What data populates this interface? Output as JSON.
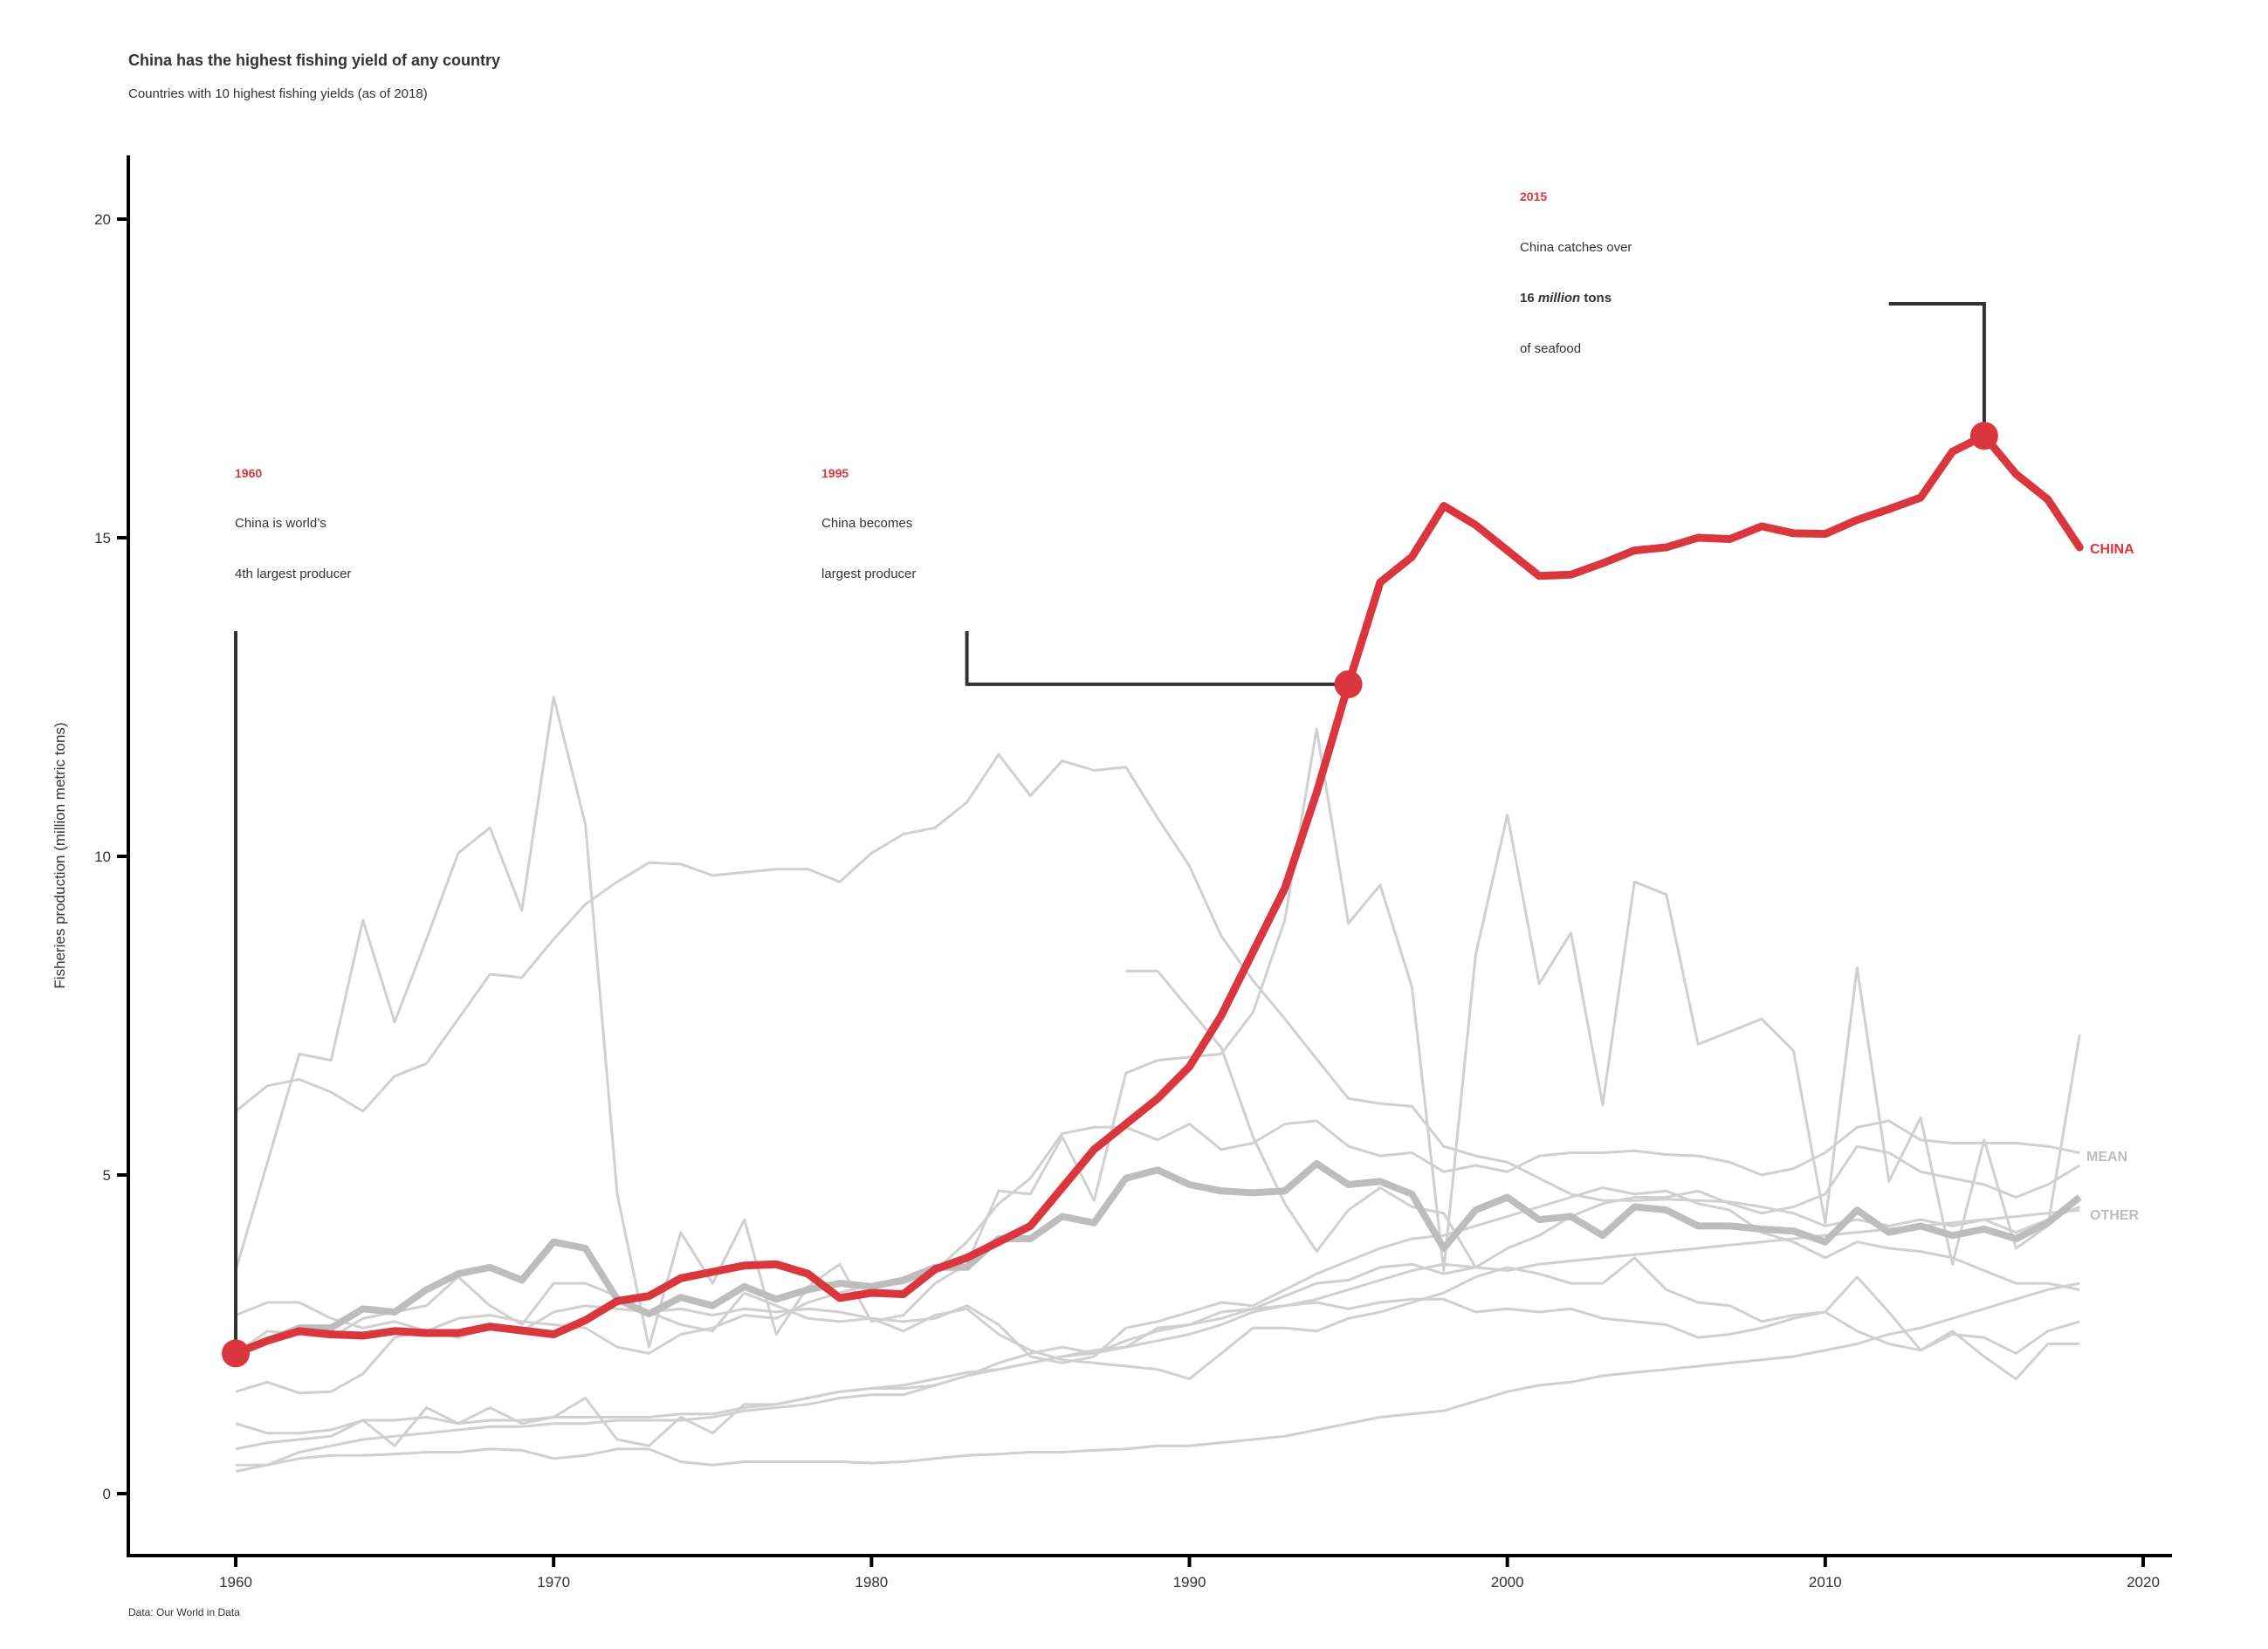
{
  "colors": {
    "highlight": "#d9363e",
    "other_lines": "#d0d0d0",
    "mean_line": "#bdbdbd",
    "text": "#333333",
    "axis": "#000000"
  },
  "title": "China has the highest fishing yield of any country",
  "subtitle": "Countries with 10 highest fishing yields (as of 2018)",
  "source": "Data: Our World in Data",
  "annotations": [
    {
      "year_label": "1960",
      "line1": "China is world’s",
      "line2": "4th largest producer"
    },
    {
      "year_label": "1995",
      "line1": "China becomes",
      "line2": "largest producer"
    },
    {
      "year_label": "2015",
      "line1": "China catches over",
      "line2_pre": "16 ",
      "line2_em": "million",
      "line2_post": " tons",
      "line3": "of seafood"
    }
  ],
  "chart_data": {
    "type": "line",
    "xlabel": "",
    "ylabel": "Fisheries production (million metric tons)",
    "xlim": [
      1960,
      2020
    ],
    "ylim": [
      0,
      20
    ],
    "x_ticks": [
      "1960",
      "1970",
      "1980",
      "1990",
      "2000",
      "2010",
      "2020"
    ],
    "y_ticks": [
      "0",
      "5",
      "10",
      "15",
      "20"
    ],
    "grid": false,
    "legend": "direct labels at line ends",
    "x": [
      1960,
      1961,
      1962,
      1963,
      1964,
      1965,
      1966,
      1967,
      1968,
      1969,
      1970,
      1971,
      1972,
      1973,
      1974,
      1975,
      1976,
      1977,
      1978,
      1979,
      1980,
      1981,
      1982,
      1983,
      1984,
      1985,
      1986,
      1987,
      1988,
      1989,
      1990,
      1991,
      1992,
      1993,
      1994,
      1995,
      1996,
      1997,
      1998,
      1999,
      2000,
      2001,
      2002,
      2003,
      2004,
      2005,
      2006,
      2007,
      2008,
      2009,
      2010,
      2011,
      2012,
      2013,
      2014,
      2015,
      2016,
      2017,
      2018
    ],
    "highlight_series": {
      "name": "CHINA",
      "values": [
        2.2,
        2.4,
        2.55,
        2.5,
        2.48,
        2.55,
        2.52,
        2.52,
        2.62,
        2.56,
        2.5,
        2.72,
        3.02,
        3.1,
        3.38,
        3.48,
        3.58,
        3.6,
        3.45,
        3.07,
        3.15,
        3.13,
        3.52,
        3.7,
        3.95,
        4.2,
        4.8,
        5.4,
        5.8,
        6.2,
        6.7,
        7.5,
        8.5,
        9.5,
        11.0,
        12.7,
        14.3,
        14.7,
        15.5,
        15.2,
        14.8,
        14.4,
        14.42,
        14.6,
        14.8,
        14.85,
        15.0,
        14.98,
        15.18,
        15.07,
        15.06,
        15.28,
        15.45,
        15.63,
        16.35,
        16.6,
        16.0,
        15.6,
        14.85
      ]
    },
    "mean_series": {
      "name": "MEAN",
      "values": [
        2.2,
        2.4,
        2.6,
        2.6,
        2.9,
        2.85,
        3.2,
        3.45,
        3.55,
        3.35,
        3.95,
        3.85,
        3.05,
        2.82,
        3.08,
        2.95,
        3.25,
        3.05,
        3.2,
        3.3,
        3.25,
        3.35,
        3.55,
        3.55,
        4.0,
        4.0,
        4.35,
        4.25,
        4.95,
        5.08,
        4.85,
        4.75,
        4.72,
        4.75,
        5.18,
        4.85,
        4.9,
        4.7,
        3.85,
        4.45,
        4.65,
        4.3,
        4.35,
        4.05,
        4.5,
        4.45,
        4.2,
        4.2,
        4.15,
        4.12,
        3.95,
        4.45,
        4.1,
        4.2,
        4.05,
        4.15,
        4.0,
        4.25,
        4.65
      ]
    },
    "other_label": "OTHER",
    "other_series": [
      {
        "start": 1960,
        "values": [
          6.0,
          6.4,
          6.5,
          6.3,
          6.0,
          6.55,
          6.75,
          7.45,
          8.15,
          8.1,
          8.7,
          9.25,
          9.6,
          9.9,
          9.88,
          9.7,
          9.75,
          9.8,
          9.8,
          9.6,
          10.05,
          10.35,
          10.45,
          10.85,
          11.6,
          10.95,
          11.5,
          11.35,
          11.4,
          10.6,
          9.85,
          8.75,
          8.05,
          7.45,
          6.82,
          6.2,
          6.12,
          6.08,
          5.45,
          5.3,
          5.2,
          4.95,
          4.7,
          4.6,
          4.6,
          4.62,
          4.6,
          4.58,
          4.5,
          4.4,
          4.2,
          4.3,
          4.2,
          4.3,
          4.2,
          4.3,
          4.1,
          4.3,
          4.5
        ]
      },
      {
        "start": 1960,
        "values": [
          3.5,
          5.2,
          6.9,
          6.8,
          9.0,
          7.4,
          8.7,
          10.05,
          10.45,
          9.15,
          12.5,
          10.5,
          4.7,
          2.3,
          4.1,
          3.3,
          4.3,
          2.5,
          3.25,
          3.6,
          2.7,
          2.8,
          3.3,
          3.6,
          4.75,
          4.7,
          5.6,
          4.6,
          6.6,
          6.8,
          6.85,
          6.9,
          7.55,
          9.0,
          12.0,
          8.95,
          9.55,
          7.95,
          3.5,
          8.45,
          10.65,
          8.0,
          8.8,
          6.1,
          9.6,
          9.4,
          7.05,
          7.25,
          7.45,
          6.95,
          4.25,
          8.25,
          4.9,
          5.9,
          3.6,
          5.55,
          3.85,
          4.2,
          7.2
        ]
      },
      {
        "start": 1960,
        "values": [
          2.8,
          3.0,
          3.0,
          2.75,
          2.6,
          2.7,
          2.55,
          2.45,
          2.6,
          2.55,
          2.85,
          2.95,
          2.9,
          2.85,
          2.9,
          2.8,
          2.9,
          2.85,
          2.9,
          2.85,
          2.75,
          2.7,
          2.75,
          2.95,
          2.65,
          2.15,
          2.05,
          2.15,
          2.6,
          2.7,
          2.85,
          3.0,
          2.95,
          3.2,
          3.45,
          3.65,
          3.85,
          4.0,
          4.05,
          4.2,
          4.35,
          4.5,
          4.65,
          4.8,
          4.7,
          4.75,
          4.55,
          4.45,
          4.1,
          3.95,
          3.7,
          3.95,
          3.85,
          3.8,
          3.7,
          3.5,
          3.3,
          3.3,
          3.2
        ]
      },
      {
        "start": 1960,
        "values": [
          1.6,
          1.75,
          1.58,
          1.6,
          1.88,
          2.45,
          2.55,
          2.75,
          2.8,
          2.7,
          2.65,
          2.6,
          2.3,
          2.2,
          2.5,
          2.6,
          2.8,
          2.75,
          3.0,
          3.15,
          3.28,
          3.3,
          3.5,
          3.95,
          4.55,
          4.95,
          5.65,
          5.75,
          5.75,
          5.55,
          5.8,
          5.4,
          5.5,
          5.8,
          5.85,
          5.45,
          5.3,
          5.35,
          5.05,
          5.15,
          5.05,
          5.3,
          5.35,
          5.35,
          5.38,
          5.32,
          5.3,
          5.2,
          5.0,
          5.1,
          5.35,
          5.75,
          5.85,
          5.55,
          5.5,
          5.5,
          5.5,
          5.45,
          5.35
        ]
      },
      {
        "start": 1960,
        "values": [
          1.1,
          0.95,
          0.95,
          1.0,
          1.15,
          1.15,
          1.2,
          1.1,
          1.15,
          1.15,
          1.2,
          1.2,
          1.2,
          1.2,
          1.25,
          1.25,
          1.35,
          1.4,
          1.5,
          1.6,
          1.65,
          1.7,
          1.8,
          1.9,
          1.95,
          2.05,
          2.15,
          2.25,
          2.3,
          2.4,
          2.5,
          2.65,
          2.85,
          2.95,
          3.05,
          3.2,
          3.35,
          3.5,
          3.6,
          3.55,
          3.5,
          3.6,
          3.65,
          3.7,
          3.75,
          3.8,
          3.85,
          3.9,
          3.95,
          4.0,
          4.05,
          4.1,
          4.15,
          4.2,
          4.25,
          4.3,
          4.35,
          4.4,
          4.45
        ]
      },
      {
        "start": 1960,
        "values": [
          0.7,
          0.8,
          0.85,
          0.9,
          1.15,
          0.75,
          1.35,
          1.1,
          1.35,
          1.1,
          1.2,
          1.5,
          0.85,
          0.75,
          1.2,
          0.95,
          1.4,
          1.4,
          1.5,
          1.6,
          1.65,
          1.65,
          1.7,
          1.85,
          2.05,
          2.2,
          2.3,
          2.2,
          2.3,
          2.6,
          2.65,
          2.75,
          2.9,
          3.1,
          3.3,
          3.35,
          3.55,
          3.6,
          3.45,
          3.55,
          3.85,
          4.05,
          4.35,
          4.55,
          4.65,
          4.65,
          4.75,
          4.55,
          4.4,
          4.5,
          4.7,
          5.45,
          5.35,
          5.05,
          4.95,
          4.85,
          4.65,
          4.85,
          5.15
        ]
      },
      {
        "start": 1960,
        "values": [
          0.45,
          0.45,
          0.55,
          0.6,
          0.6,
          0.62,
          0.65,
          0.65,
          0.7,
          0.68,
          0.55,
          0.6,
          0.7,
          0.7,
          0.5,
          0.45,
          0.5,
          0.5,
          0.5,
          0.5,
          0.48,
          0.5,
          0.55,
          0.6,
          0.62,
          0.65,
          0.65,
          0.68,
          0.7,
          0.75,
          0.75,
          0.8,
          0.85,
          0.9,
          1.0,
          1.1,
          1.2,
          1.25,
          1.3,
          1.45,
          1.6,
          1.7,
          1.75,
          1.85,
          1.9,
          1.95,
          2.0,
          2.05,
          2.1,
          2.15,
          2.25,
          2.35,
          2.5,
          2.6,
          2.75,
          2.9,
          3.05,
          3.2,
          3.3
        ]
      },
      {
        "start": 1960,
        "values": [
          0.35,
          0.45,
          0.65,
          0.75,
          0.85,
          0.9,
          0.95,
          1.0,
          1.05,
          1.05,
          1.1,
          1.1,
          1.15,
          1.15,
          1.15,
          1.2,
          1.3,
          1.35,
          1.4,
          1.5,
          1.55,
          1.55,
          1.7,
          1.85,
          1.95,
          2.05,
          2.15,
          2.2,
          2.4,
          2.55,
          2.65,
          2.85,
          2.9,
          2.95,
          3.0,
          2.9,
          3.0,
          3.05,
          3.05,
          2.85,
          2.9,
          2.85,
          2.9,
          2.75,
          2.7,
          2.65,
          2.45,
          2.5,
          2.6,
          2.75,
          2.85,
          2.55,
          2.35,
          2.25,
          2.5,
          2.45,
          2.2,
          2.55,
          2.7
        ]
      },
      {
        "start": 1960,
        "values": [
          2.2,
          2.55,
          2.5,
          2.45,
          2.75,
          2.85,
          2.95,
          3.4,
          2.95,
          2.65,
          3.3,
          3.3,
          3.1,
          2.85,
          2.65,
          2.55,
          3.15,
          2.95,
          2.75,
          2.7,
          2.75,
          2.55,
          2.8,
          2.9,
          2.5,
          2.25,
          2.1,
          2.05,
          2.0,
          1.95,
          1.8,
          2.2,
          2.6,
          2.6,
          2.55,
          2.75,
          2.85,
          3.0,
          3.15,
          3.4,
          3.55,
          3.45,
          3.3,
          3.3,
          3.7,
          3.2,
          3.0,
          2.95,
          2.7,
          2.8,
          2.85,
          3.4,
          2.85,
          2.25,
          2.55,
          2.15,
          1.8,
          2.35,
          2.35
        ]
      },
      {
        "start": 1988,
        "values": [
          8.2,
          8.2,
          7.6,
          7.0,
          5.6,
          4.55,
          3.8,
          4.45,
          4.8,
          4.5,
          4.4,
          3.55,
          3.5
        ]
      }
    ]
  }
}
